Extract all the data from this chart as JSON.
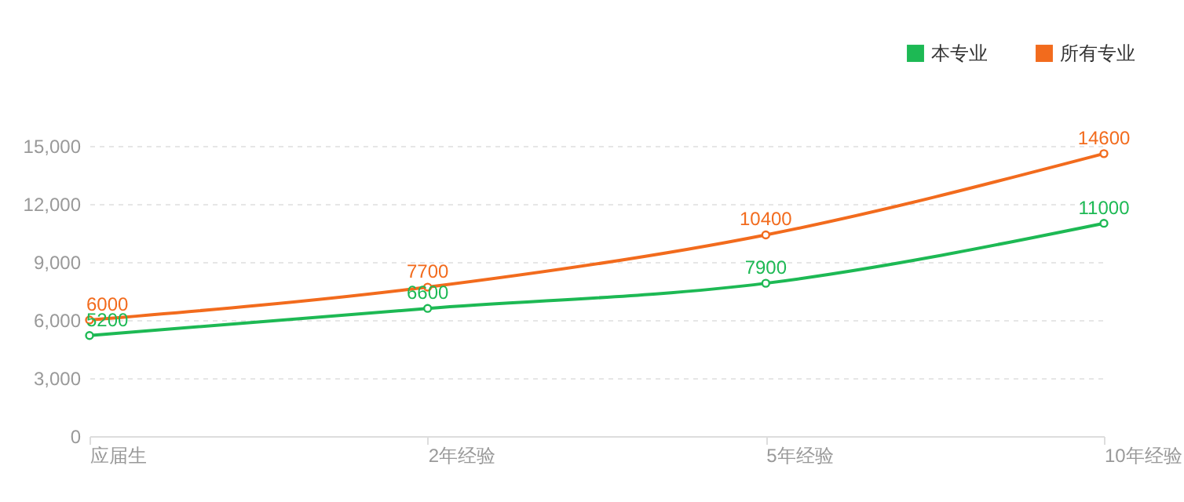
{
  "chart_data": {
    "type": "line",
    "categories": [
      "应届生",
      "2年经验",
      "5年经验",
      "10年经验"
    ],
    "series": [
      {
        "name": "本专业",
        "color": "#1db954",
        "values": [
          5200,
          6600,
          7900,
          11000
        ]
      },
      {
        "name": "所有专业",
        "color": "#f26b1d",
        "values": [
          6000,
          7700,
          10400,
          14600
        ]
      }
    ],
    "ylim": [
      0,
      15000
    ],
    "yticks": [
      0,
      {
        "value": 3000,
        "label": "3,000"
      },
      {
        "value": 6000,
        "label": "6,000"
      },
      {
        "value": 9000,
        "label": "9,000"
      },
      {
        "value": 12000,
        "label": "12,000"
      },
      {
        "value": 15000,
        "label": "15,000"
      }
    ],
    "grid": "y",
    "legend": "top right",
    "marker": "circle",
    "data_labels": true
  }
}
